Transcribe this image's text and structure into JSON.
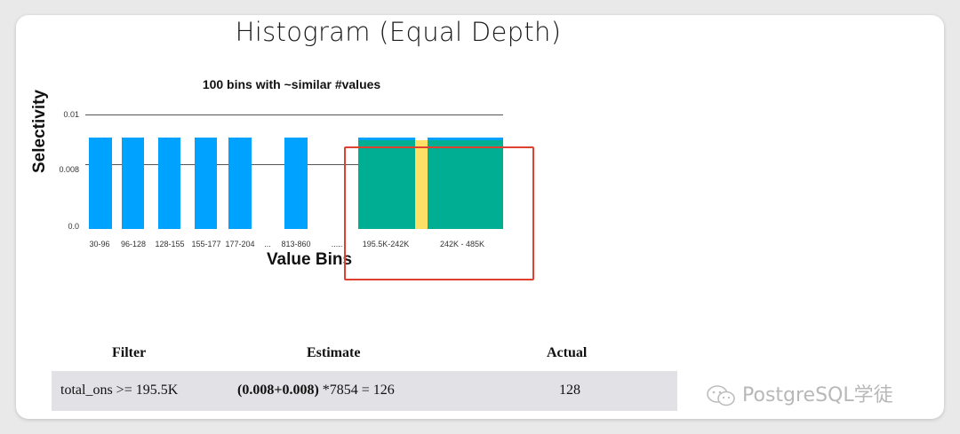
{
  "slide": {
    "title": "Histogram (Equal Depth)",
    "watermark": "PostgreSQL学徒"
  },
  "chart_data": {
    "type": "bar",
    "title": "100 bins with ~similar #values",
    "xlabel": "Value Bins",
    "ylabel": "Selectivity",
    "ylim": [
      0,
      0.01
    ],
    "yticks": [
      "0.01",
      "0.008",
      "0.0"
    ],
    "grid": true,
    "categories": [
      "30-96",
      "96-128",
      "128-155",
      "155-177",
      "177-204",
      "...",
      "813-860",
      ".....",
      "195.5K-242K",
      "242K - 485K"
    ],
    "values": [
      0.008,
      0.008,
      0.008,
      0.008,
      0.008,
      null,
      0.008,
      null,
      0.008,
      0.008
    ],
    "colors": {
      "bar": "#00a2ff",
      "selected": "#00ae94",
      "boundary": "#ffe066",
      "highlight_box": "#e0402f"
    }
  },
  "table": {
    "headers": [
      "Filter",
      "Estimate",
      "Actual"
    ],
    "row": {
      "filter": "total_ons >= 195.5K",
      "estimate_bold": "(0.008+0.008)",
      "estimate_rest": " *7854 = 126",
      "actual": "128"
    }
  }
}
